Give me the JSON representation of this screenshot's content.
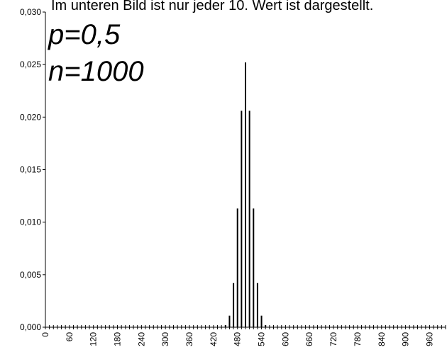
{
  "caption": "Im unteren Bild ist nur jeder 10. Wert ist dargestellt.",
  "chart_data": {
    "type": "bar",
    "title": "",
    "xlabel": "",
    "ylabel": "",
    "annotations": [
      "p=0,5",
      "n=1000"
    ],
    "ylim": [
      0,
      0.03
    ],
    "xlim": [
      0,
      1000
    ],
    "y_ticks": [
      "0,000",
      "0,005",
      "0,010",
      "0,015",
      "0,020",
      "0,025",
      "0,030"
    ],
    "x_ticks": [
      "0",
      "60",
      "120",
      "180",
      "240",
      "300",
      "360",
      "420",
      "480",
      "540",
      "600",
      "660",
      "720",
      "780",
      "840",
      "900",
      "960"
    ],
    "x": [
      450,
      460,
      470,
      480,
      490,
      500,
      510,
      520,
      530,
      540,
      550
    ],
    "values": [
      0.0002,
      0.0011,
      0.0042,
      0.0113,
      0.0206,
      0.0252,
      0.0206,
      0.0113,
      0.0042,
      0.0011,
      0.0002
    ]
  }
}
